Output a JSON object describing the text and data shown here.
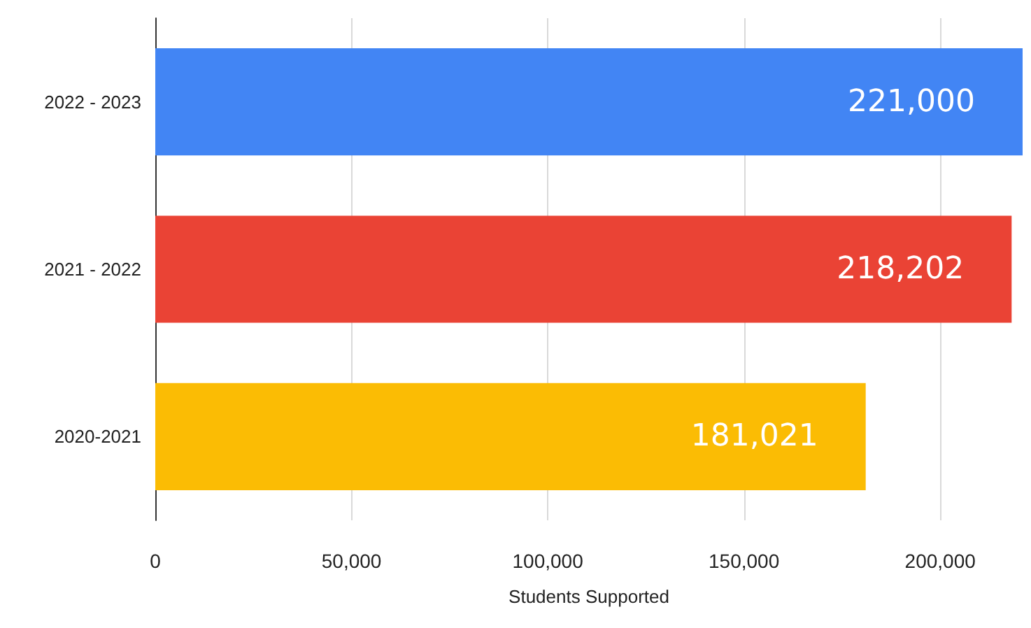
{
  "chart_data": {
    "type": "bar",
    "orientation": "horizontal",
    "xlabel": "Students Supported",
    "categories": [
      "2022 - 2023",
      "2021 - 2022",
      "2020-2021"
    ],
    "values": [
      221000,
      218202,
      181021
    ],
    "colors": [
      "#4285f4",
      "#ea4335",
      "#fbbc04"
    ],
    "value_labels": [
      "221,000",
      "218,202",
      "181,021"
    ],
    "xlim": [
      0,
      221000
    ],
    "xticks": [
      {
        "value": 0,
        "label": "0"
      },
      {
        "value": 50000,
        "label": "50,000"
      },
      {
        "value": 100000,
        "label": "100,000"
      },
      {
        "value": 150000,
        "label": "150,000"
      },
      {
        "value": 200000,
        "label": "200,000"
      }
    ],
    "grid": "x"
  }
}
